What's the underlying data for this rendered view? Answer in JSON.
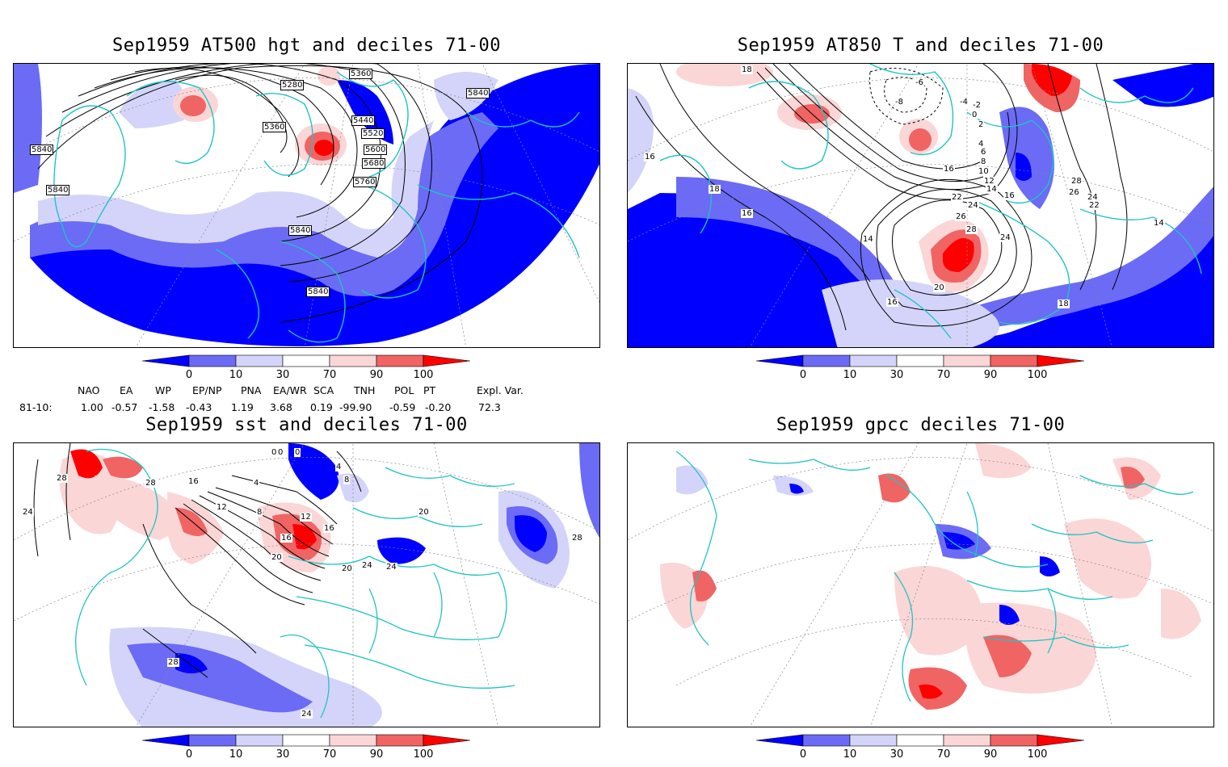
{
  "panels": [
    {
      "title": "Sep1959 AT500 hgt and deciles 71-00",
      "contour_labels": [
        "5280",
        "5360",
        "5360",
        "5440",
        "5520",
        "5600",
        "5680",
        "5760",
        "5840",
        "5840",
        "5840",
        "5840",
        "5840"
      ]
    },
    {
      "title": "Sep1959 AT850 T and deciles 71-00",
      "contour_labels": [
        "18",
        "16",
        "18",
        "16",
        "14",
        "16",
        "18",
        "14",
        "16",
        "20",
        "22",
        "24",
        "24",
        "26",
        "28",
        "28",
        "26",
        "24",
        "22",
        "16",
        "14",
        "12",
        "10",
        "8",
        "6",
        "4",
        "2",
        "0",
        "-2",
        "-4",
        "-6",
        "-8"
      ]
    },
    {
      "title": "Sep1959 sst and deciles 71-00",
      "contour_labels": [
        "28",
        "28",
        "24",
        "16",
        "12",
        "8",
        "4",
        "0",
        "0",
        "0",
        "4",
        "8",
        "12",
        "16",
        "16",
        "20",
        "20",
        "24",
        "24",
        "20",
        "28",
        "28",
        "24"
      ]
    },
    {
      "title": "Sep1959 gpcc deciles 71-00",
      "contour_labels": []
    }
  ],
  "colorbar": {
    "ticks": [
      "0",
      "10",
      "30",
      "70",
      "90",
      "100"
    ],
    "colors": [
      "#0000ff",
      "#6b6bf5",
      "#d4d4fa",
      "#ffffff",
      "#fbd6d6",
      "#f06464",
      "#ff0000"
    ]
  },
  "indices": {
    "headers": [
      "NAO",
      "EA",
      "WP",
      "EP/NP",
      "PNA",
      "EA/WR",
      "SCA",
      "TNH",
      "POL",
      "PT",
      "Expl. Var."
    ],
    "row_label": "81-10:",
    "values": [
      "1.00",
      "-0.57",
      "-1.58",
      "-0.43",
      "1.19",
      "3.68",
      "0.19",
      "-99.90",
      "-0.59",
      "-0.20",
      "72.3"
    ]
  }
}
